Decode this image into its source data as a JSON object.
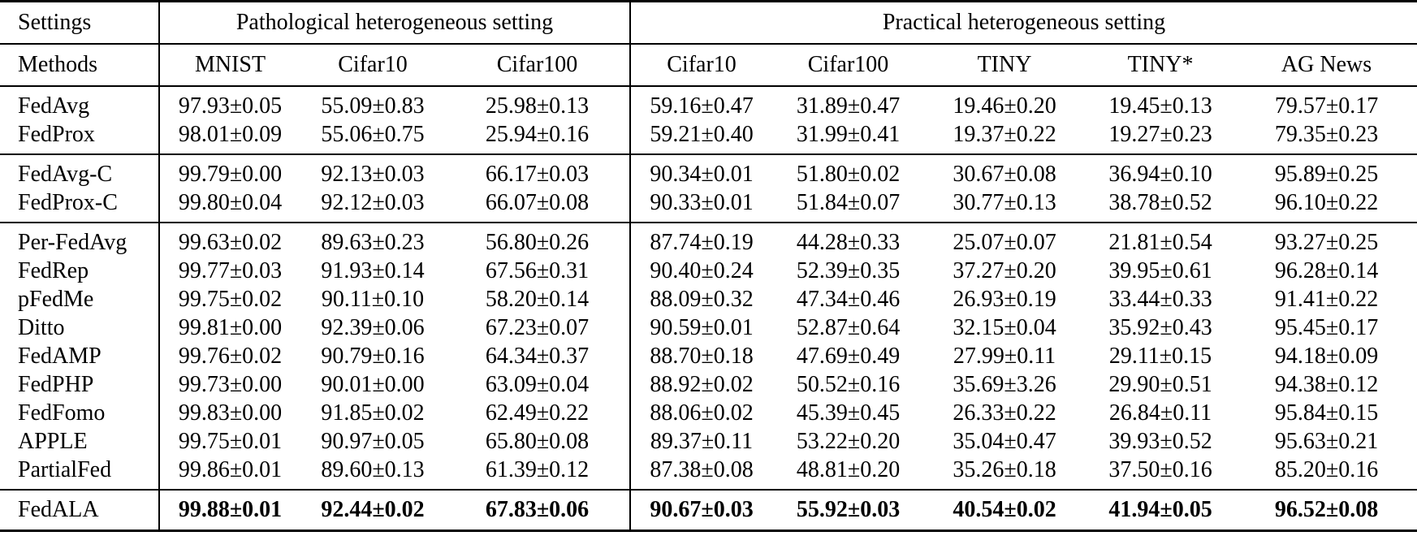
{
  "header": {
    "settings_label": "Settings",
    "pathological_label": "Pathological heterogeneous setting",
    "practical_label": "Practical heterogeneous setting",
    "methods_label": "Methods",
    "columns": [
      "MNIST",
      "Cifar10",
      "Cifar100",
      "Cifar10",
      "Cifar100",
      "TINY",
      "TINY*",
      "AG News"
    ]
  },
  "groups": [
    [
      {
        "method": "FedAvg",
        "values": [
          "97.93±0.05",
          "55.09±0.83",
          "25.98±0.13",
          "59.16±0.47",
          "31.89±0.47",
          "19.46±0.20",
          "19.45±0.13",
          "79.57±0.17"
        ]
      },
      {
        "method": "FedProx",
        "values": [
          "98.01±0.09",
          "55.06±0.75",
          "25.94±0.16",
          "59.21±0.40",
          "31.99±0.41",
          "19.37±0.22",
          "19.27±0.23",
          "79.35±0.23"
        ]
      }
    ],
    [
      {
        "method": "FedAvg-C",
        "values": [
          "99.79±0.00",
          "92.13±0.03",
          "66.17±0.03",
          "90.34±0.01",
          "51.80±0.02",
          "30.67±0.08",
          "36.94±0.10",
          "95.89±0.25"
        ]
      },
      {
        "method": "FedProx-C",
        "values": [
          "99.80±0.04",
          "92.12±0.03",
          "66.07±0.08",
          "90.33±0.01",
          "51.84±0.07",
          "30.77±0.13",
          "38.78±0.52",
          "96.10±0.22"
        ]
      }
    ],
    [
      {
        "method": "Per-FedAvg",
        "values": [
          "99.63±0.02",
          "89.63±0.23",
          "56.80±0.26",
          "87.74±0.19",
          "44.28±0.33",
          "25.07±0.07",
          "21.81±0.54",
          "93.27±0.25"
        ]
      },
      {
        "method": "FedRep",
        "values": [
          "99.77±0.03",
          "91.93±0.14",
          "67.56±0.31",
          "90.40±0.24",
          "52.39±0.35",
          "37.27±0.20",
          "39.95±0.61",
          "96.28±0.14"
        ]
      },
      {
        "method": "pFedMe",
        "values": [
          "99.75±0.02",
          "90.11±0.10",
          "58.20±0.14",
          "88.09±0.32",
          "47.34±0.46",
          "26.93±0.19",
          "33.44±0.33",
          "91.41±0.22"
        ]
      },
      {
        "method": "Ditto",
        "values": [
          "99.81±0.00",
          "92.39±0.06",
          "67.23±0.07",
          "90.59±0.01",
          "52.87±0.64",
          "32.15±0.04",
          "35.92±0.43",
          "95.45±0.17"
        ]
      },
      {
        "method": "FedAMP",
        "values": [
          "99.76±0.02",
          "90.79±0.16",
          "64.34±0.37",
          "88.70±0.18",
          "47.69±0.49",
          "27.99±0.11",
          "29.11±0.15",
          "94.18±0.09"
        ]
      },
      {
        "method": "FedPHP",
        "values": [
          "99.73±0.00",
          "90.01±0.00",
          "63.09±0.04",
          "88.92±0.02",
          "50.52±0.16",
          "35.69±3.26",
          "29.90±0.51",
          "94.38±0.12"
        ]
      },
      {
        "method": "FedFomo",
        "values": [
          "99.83±0.00",
          "91.85±0.02",
          "62.49±0.22",
          "88.06±0.02",
          "45.39±0.45",
          "26.33±0.22",
          "26.84±0.11",
          "95.84±0.15"
        ]
      },
      {
        "method": "APPLE",
        "values": [
          "99.75±0.01",
          "90.97±0.05",
          "65.80±0.08",
          "89.37±0.11",
          "53.22±0.20",
          "35.04±0.47",
          "39.93±0.52",
          "95.63±0.21"
        ]
      },
      {
        "method": "PartialFed",
        "values": [
          "99.86±0.01",
          "89.60±0.13",
          "61.39±0.12",
          "87.38±0.08",
          "48.81±0.20",
          "35.26±0.18",
          "37.50±0.16",
          "85.20±0.16"
        ]
      }
    ]
  ],
  "final_row": {
    "method": "FedALA",
    "values": [
      "99.88±0.01",
      "92.44±0.02",
      "67.83±0.06",
      "90.67±0.03",
      "55.92±0.03",
      "40.54±0.02",
      "41.94±0.05",
      "96.52±0.08"
    ]
  }
}
